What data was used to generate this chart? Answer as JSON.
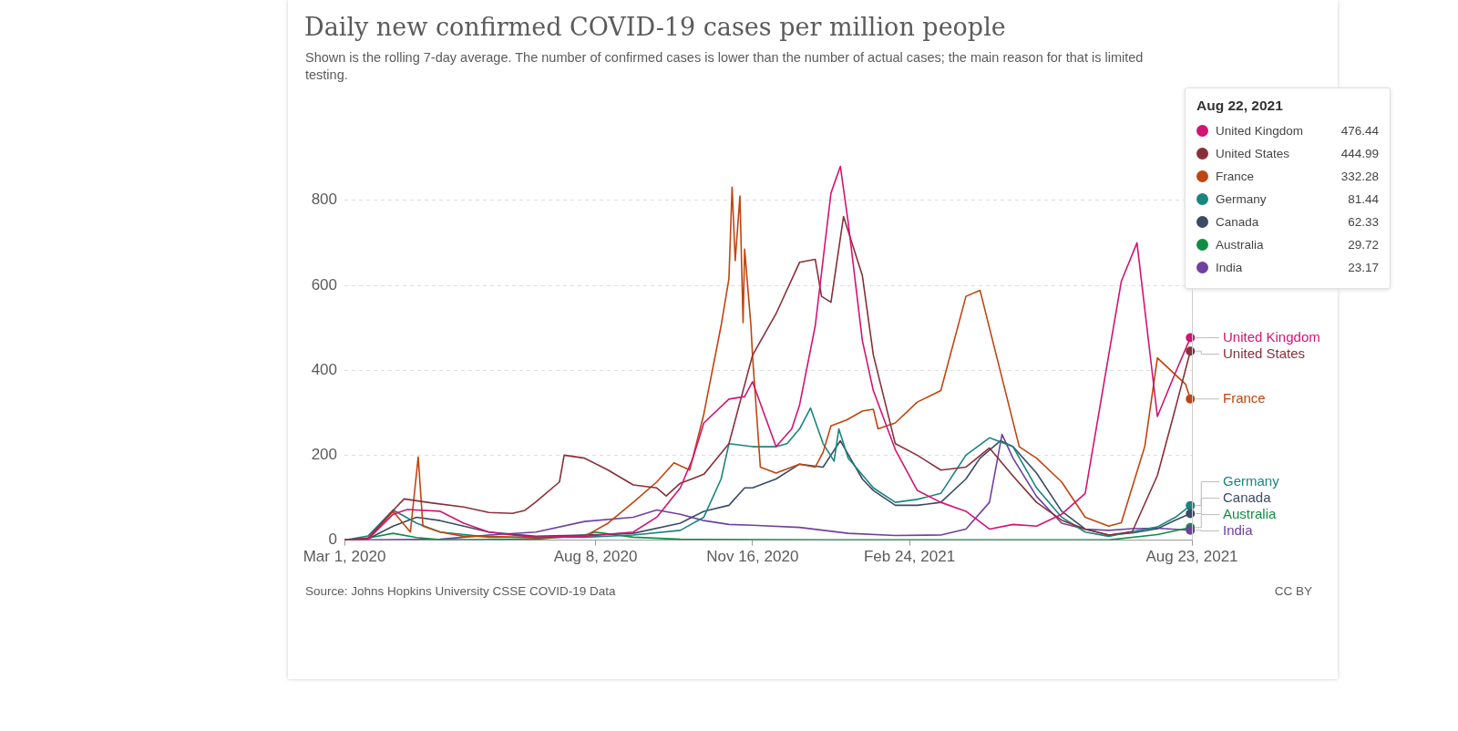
{
  "chart_data": {
    "type": "line",
    "title": "Daily new confirmed COVID-19 cases per million people",
    "subtitle": "Shown is the rolling 7-day average. The number of confirmed cases is lower than the number of actual cases; the main reason for that is limited testing.",
    "xlim": [
      "2020-03-01",
      "2021-08-23"
    ],
    "xticks": [
      {
        "value": "2020-03-01",
        "label": "Mar 1, 2020"
      },
      {
        "value": "2020-08-08",
        "label": "Aug 8, 2020"
      },
      {
        "value": "2020-11-16",
        "label": "Nov 16, 2020"
      },
      {
        "value": "2021-02-24",
        "label": "Feb 24, 2021"
      },
      {
        "value": "2021-08-23",
        "label": "Aug 23, 2021"
      }
    ],
    "ylim": [
      0,
      900
    ],
    "yticks": [
      0,
      200,
      400,
      600,
      800
    ],
    "grid": "y",
    "legend": "right",
    "marker": "none",
    "line_style": "solid",
    "annotations": [
      "Source: Johns Hopkins University CSSE COVID-19 Data",
      "CC BY",
      "Aug 22, 2021",
      "476.44",
      "444.99",
      "332.28",
      "81.44",
      "62.33",
      "29.72",
      "23.17"
    ],
    "series": [
      {
        "name": "United Kingdom",
        "color": "#d21473",
        "x": [
          "2020-03-01",
          "2020-03-16",
          "2020-04-01",
          "2020-04-10",
          "2020-05-01",
          "2020-05-16",
          "2020-06-01",
          "2020-06-16",
          "2020-07-01",
          "2020-08-01",
          "2020-09-01",
          "2020-09-16",
          "2020-10-01",
          "2020-10-09",
          "2020-10-16",
          "2020-11-01",
          "2020-11-11",
          "2020-11-16",
          "2020-12-01",
          "2020-12-11",
          "2020-12-16",
          "2020-12-26",
          "2021-01-05",
          "2021-01-11",
          "2021-01-16",
          "2021-01-25",
          "2021-02-01",
          "2021-02-15",
          "2021-03-01",
          "2021-03-16",
          "2021-04-01",
          "2021-04-16",
          "2021-05-01",
          "2021-05-16",
          "2021-06-01",
          "2021-06-16",
          "2021-07-01",
          "2021-07-09",
          "2021-07-19",
          "2021-08-01",
          "2021-08-11",
          "2021-08-22"
        ],
        "values": [
          0,
          2,
          61,
          72,
          68,
          40,
          19,
          12,
          7,
          9,
          19,
          54,
          123,
          193,
          276,
          332,
          338,
          373,
          220,
          262,
          318,
          505,
          817,
          880,
          748,
          470,
          352,
          213,
          117,
          89,
          68,
          26,
          37,
          33,
          61,
          110,
          436,
          609,
          700,
          291,
          381,
          476.44
        ]
      },
      {
        "name": "United States",
        "color": "#883039",
        "x": [
          "2020-03-01",
          "2020-03-16",
          "2020-04-01",
          "2020-04-08",
          "2020-04-25",
          "2020-05-16",
          "2020-06-01",
          "2020-06-16",
          "2020-06-24",
          "2020-07-01",
          "2020-07-16",
          "2020-07-19",
          "2020-08-01",
          "2020-08-16",
          "2020-09-01",
          "2020-09-16",
          "2020-09-22",
          "2020-10-01",
          "2020-10-16",
          "2020-11-01",
          "2020-11-16",
          "2020-12-01",
          "2020-12-16",
          "2020-12-26",
          "2020-12-30",
          "2021-01-05",
          "2021-01-13",
          "2021-01-25",
          "2021-02-01",
          "2021-02-15",
          "2021-03-01",
          "2021-03-16",
          "2021-04-01",
          "2021-04-16",
          "2021-05-01",
          "2021-05-16",
          "2021-06-01",
          "2021-06-16",
          "2021-07-01",
          "2021-07-16",
          "2021-08-01",
          "2021-08-11",
          "2021-08-16",
          "2021-08-22"
        ],
        "values": [
          0,
          5,
          70,
          97,
          88,
          78,
          65,
          63,
          70,
          90,
          137,
          200,
          193,
          165,
          130,
          123,
          104,
          134,
          155,
          227,
          435,
          533,
          654,
          661,
          574,
          560,
          762,
          623,
          436,
          227,
          200,
          165,
          172,
          217,
          151,
          89,
          47,
          26,
          12,
          20,
          152,
          290,
          360,
          444.99
        ]
      },
      {
        "name": "France",
        "color": "#c0450f",
        "x": [
          "2020-03-01",
          "2020-03-16",
          "2020-04-01",
          "2020-04-12",
          "2020-04-17",
          "2020-04-20",
          "2020-05-01",
          "2020-05-16",
          "2020-06-01",
          "2020-07-01",
          "2020-08-01",
          "2020-08-16",
          "2020-09-01",
          "2020-09-16",
          "2020-09-27",
          "2020-10-07",
          "2020-10-16",
          "2020-10-27",
          "2020-11-01",
          "2020-11-03",
          "2020-11-05",
          "2020-11-08",
          "2020-11-10",
          "2020-11-11",
          "2020-11-15",
          "2020-11-16",
          "2020-11-21",
          "2020-12-01",
          "2020-12-16",
          "2020-12-26",
          "2020-12-31",
          "2021-01-05",
          "2021-01-15",
          "2021-01-25",
          "2021-02-01",
          "2021-02-04",
          "2021-02-15",
          "2021-03-01",
          "2021-03-16",
          "2021-04-01",
          "2021-04-10",
          "2021-05-05",
          "2021-05-16",
          "2021-06-01",
          "2021-06-16",
          "2021-07-01",
          "2021-07-09",
          "2021-07-24",
          "2021-08-01",
          "2021-08-19",
          "2021-08-22"
        ],
        "values": [
          0,
          3,
          68,
          19,
          196,
          33,
          19,
          9,
          9,
          5,
          9,
          40,
          89,
          137,
          182,
          165,
          297,
          505,
          616,
          831,
          658,
          810,
          512,
          685,
          505,
          436,
          172,
          158,
          179,
          172,
          207,
          269,
          283,
          304,
          308,
          262,
          276,
          325,
          352,
          574,
          588,
          220,
          193,
          137,
          54,
          33,
          41,
          221,
          429,
          367,
          332.28
        ]
      },
      {
        "name": "Germany",
        "color": "#18857e",
        "x": [
          "2020-03-01",
          "2020-03-16",
          "2020-04-01",
          "2020-04-16",
          "2020-05-01",
          "2020-06-01",
          "2020-08-01",
          "2020-09-01",
          "2020-10-01",
          "2020-10-16",
          "2020-10-27",
          "2020-11-01",
          "2020-11-16",
          "2020-12-01",
          "2020-12-08",
          "2020-12-16",
          "2020-12-23",
          "2020-12-31",
          "2021-01-07",
          "2021-01-10",
          "2021-01-16",
          "2021-02-01",
          "2021-02-15",
          "2021-03-01",
          "2021-03-16",
          "2021-04-01",
          "2021-04-16",
          "2021-05-01",
          "2021-05-16",
          "2021-06-01",
          "2021-06-16",
          "2021-07-01",
          "2021-07-16",
          "2021-08-01",
          "2021-08-13",
          "2021-08-22"
        ],
        "values": [
          0,
          10,
          71,
          40,
          19,
          7,
          7,
          12,
          23,
          54,
          144,
          227,
          220,
          220,
          227,
          262,
          311,
          227,
          186,
          262,
          193,
          123,
          89,
          96,
          110,
          200,
          241,
          220,
          123,
          54,
          19,
          9,
          20,
          31,
          55,
          81.44
        ]
      },
      {
        "name": "Canada",
        "color": "#3a4b66",
        "x": [
          "2020-03-01",
          "2020-03-16",
          "2020-04-01",
          "2020-04-16",
          "2020-05-01",
          "2020-05-16",
          "2020-06-01",
          "2020-07-01",
          "2020-08-01",
          "2020-09-01",
          "2020-10-01",
          "2020-10-16",
          "2020-11-01",
          "2020-11-11",
          "2020-11-16",
          "2020-12-01",
          "2020-12-16",
          "2020-12-31",
          "2021-01-11",
          "2021-01-25",
          "2021-02-01",
          "2021-02-15",
          "2021-03-01",
          "2021-03-16",
          "2021-04-01",
          "2021-04-10",
          "2021-04-23",
          "2021-05-01",
          "2021-05-16",
          "2021-06-01",
          "2021-06-16",
          "2021-07-01",
          "2021-07-16",
          "2021-08-01",
          "2021-08-13",
          "2021-08-22"
        ],
        "values": [
          0,
          3,
          33,
          54,
          46,
          33,
          19,
          9,
          12,
          16,
          40,
          68,
          82,
          123,
          123,
          144,
          179,
          172,
          234,
          144,
          117,
          82,
          82,
          89,
          144,
          193,
          234,
          220,
          158,
          68,
          26,
          12,
          17,
          27,
          48,
          62.33
        ]
      },
      {
        "name": "Australia",
        "color": "#108d44",
        "x": [
          "2020-03-01",
          "2020-03-16",
          "2020-04-01",
          "2020-04-16",
          "2020-05-01",
          "2020-07-01",
          "2020-08-01",
          "2020-08-08",
          "2020-09-01",
          "2020-10-01",
          "2021-01-01",
          "2021-07-01",
          "2021-08-01",
          "2021-08-22"
        ],
        "values": [
          0,
          5,
          16,
          6,
          1,
          2,
          12,
          19,
          7,
          2,
          0.5,
          0.5,
          13,
          29.72
        ]
      },
      {
        "name": "India",
        "color": "#7040a0",
        "x": [
          "2020-03-01",
          "2020-05-01",
          "2020-05-16",
          "2020-06-01",
          "2020-07-01",
          "2020-08-01",
          "2020-09-01",
          "2020-09-16",
          "2020-10-01",
          "2020-10-16",
          "2020-11-01",
          "2020-11-16",
          "2020-12-16",
          "2021-01-16",
          "2021-02-15",
          "2021-03-16",
          "2021-04-01",
          "2021-04-16",
          "2021-04-24",
          "2021-05-01",
          "2021-05-16",
          "2021-06-01",
          "2021-06-16",
          "2021-07-01",
          "2021-07-16",
          "2021-08-01",
          "2021-08-22"
        ],
        "values": [
          0,
          2,
          7,
          12,
          19,
          44,
          54,
          71,
          61,
          46,
          37,
          35,
          30,
          16,
          11,
          12,
          26,
          89,
          249,
          193,
          103,
          40,
          26,
          23,
          27,
          28,
          23.17
        ]
      }
    ]
  }
}
